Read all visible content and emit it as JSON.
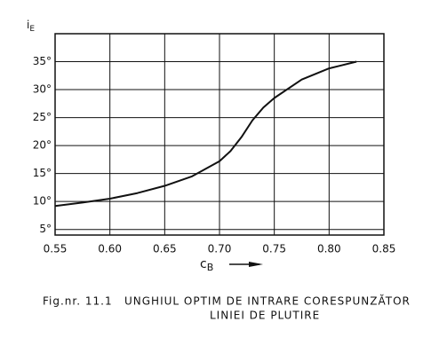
{
  "chart_data": {
    "type": "line",
    "y_label": "i",
    "y_label_sub": "E",
    "x_label": "c",
    "x_label_sub": "B",
    "caption_number": "Fig.nr. 11.1",
    "caption_line1": "UNGHIUL OPTIM DE INTRARE CORESPUNZĂTOR",
    "caption_line2": "LINIEI DE PLUTIRE",
    "x": [
      0.55,
      0.575,
      0.6,
      0.625,
      0.65,
      0.675,
      0.7,
      0.71,
      0.72,
      0.73,
      0.74,
      0.75,
      0.775,
      0.8,
      0.825
    ],
    "series": [
      {
        "color": "#111111",
        "values": [
          9.2,
          9.8,
          10.5,
          11.5,
          12.8,
          14.5,
          17.2,
          19.0,
          21.5,
          24.5,
          26.8,
          28.5,
          31.8,
          33.8,
          35.0
        ]
      }
    ],
    "xlim": [
      0.55,
      0.85
    ],
    "xticks": [
      {
        "value": 0.55,
        "label": "0.55"
      },
      {
        "value": 0.6,
        "label": "0.60"
      },
      {
        "value": 0.65,
        "label": "0.65"
      },
      {
        "value": 0.7,
        "label": "0.70"
      },
      {
        "value": 0.75,
        "label": "0.75"
      },
      {
        "value": 0.8,
        "label": "0.80"
      },
      {
        "value": 0.85,
        "label": "0.85"
      }
    ],
    "ylim": [
      4,
      40
    ],
    "yticks": [
      {
        "value": 5,
        "label": "5°"
      },
      {
        "value": 10,
        "label": "10°"
      },
      {
        "value": 15,
        "label": "15°"
      },
      {
        "value": 20,
        "label": "20°"
      },
      {
        "value": 25,
        "label": "25°"
      },
      {
        "value": 30,
        "label": "30°"
      },
      {
        "value": 35,
        "label": "35°"
      }
    ],
    "grid": true
  }
}
